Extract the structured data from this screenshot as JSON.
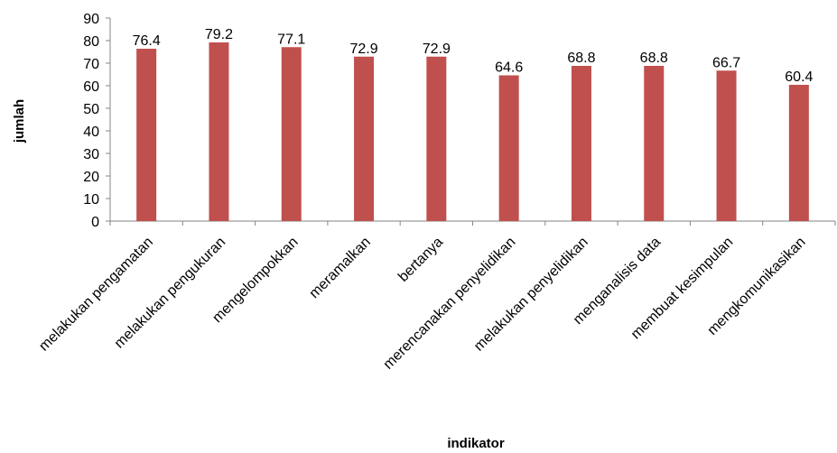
{
  "chart_data": {
    "type": "bar",
    "title": "",
    "xlabel": "indikator",
    "ylabel": "jumlah",
    "ylim": [
      0,
      90
    ],
    "ytick_step": 10,
    "grid": false,
    "legend": "none",
    "bar_color": "#c0504d",
    "categories": [
      "melakukan pengamatan",
      "melakukan pengukuran",
      "mengelompokkan",
      "meramalkan",
      "bertanya",
      "merencanakan penyelidikan",
      "melakukan penyelidikan",
      "menganalisis data",
      "membuat kesimpulan",
      "mengkomunikasikan"
    ],
    "values": [
      76.4,
      79.2,
      77.1,
      72.9,
      72.9,
      64.6,
      68.8,
      68.8,
      66.7,
      60.4
    ],
    "data_labels": [
      "76.4",
      "79.2",
      "77.1",
      "72.9",
      "72.9",
      "64.6",
      "68.8",
      "68.8",
      "66.7",
      "60.4"
    ]
  }
}
